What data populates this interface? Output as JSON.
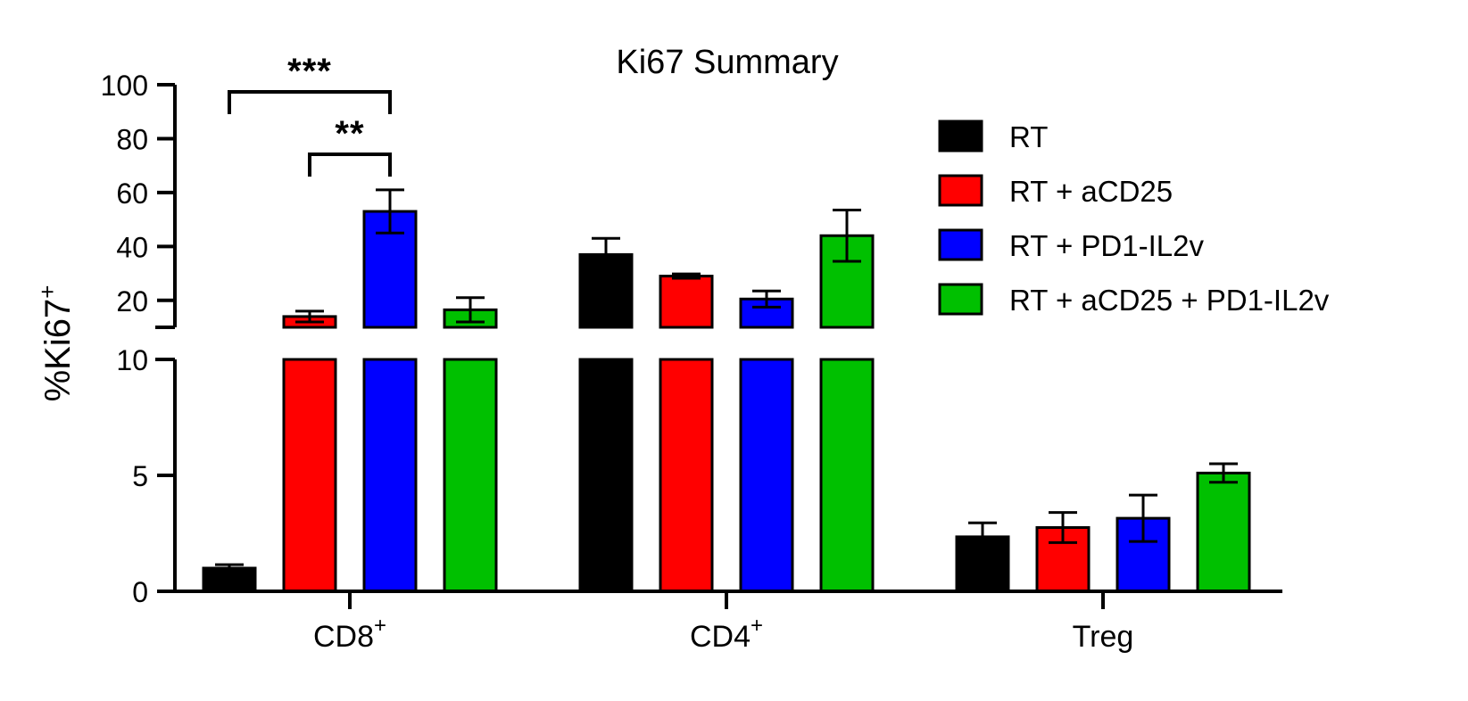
{
  "chart_data": {
    "type": "bar",
    "title": "Ki67 Summary",
    "ylabel": "%Ki67",
    "ylabel_sup": "+",
    "xlabel": "",
    "axis_break": {
      "lower": [
        0,
        10
      ],
      "upper": [
        10,
        100
      ]
    },
    "lower_ticks": [
      0,
      5,
      10
    ],
    "upper_ticks": [
      20,
      40,
      60,
      80,
      100
    ],
    "categories": [
      {
        "label": "CD8",
        "sup": "+"
      },
      {
        "label": "CD4",
        "sup": "+"
      },
      {
        "label": "Treg",
        "sup": ""
      }
    ],
    "series": [
      {
        "name": "RT",
        "color": "#000000",
        "values": [
          1.0,
          37,
          2.35
        ],
        "errors": [
          0.15,
          6,
          0.6
        ]
      },
      {
        "name": "RT + aCD25",
        "color": "#ff0000",
        "values": [
          14,
          29,
          2.75
        ],
        "errors": [
          2,
          0.8,
          0.65
        ]
      },
      {
        "name": "RT + PD1-IL2v",
        "color": "#0000ff",
        "values": [
          53,
          20.5,
          3.15
        ],
        "errors": [
          8,
          3,
          1.0
        ]
      },
      {
        "name": "RT + aCD25 + PD1-IL2v",
        "color": "#00c000",
        "values": [
          16.5,
          44,
          5.1
        ],
        "errors": [
          4.5,
          9.5,
          0.4
        ]
      }
    ],
    "significance": [
      {
        "category": 0,
        "from_series": 0,
        "to_series": 2,
        "label": "***"
      },
      {
        "category": 0,
        "from_series": 1,
        "to_series": 2,
        "label": "**"
      }
    ],
    "legend_position": "right"
  }
}
